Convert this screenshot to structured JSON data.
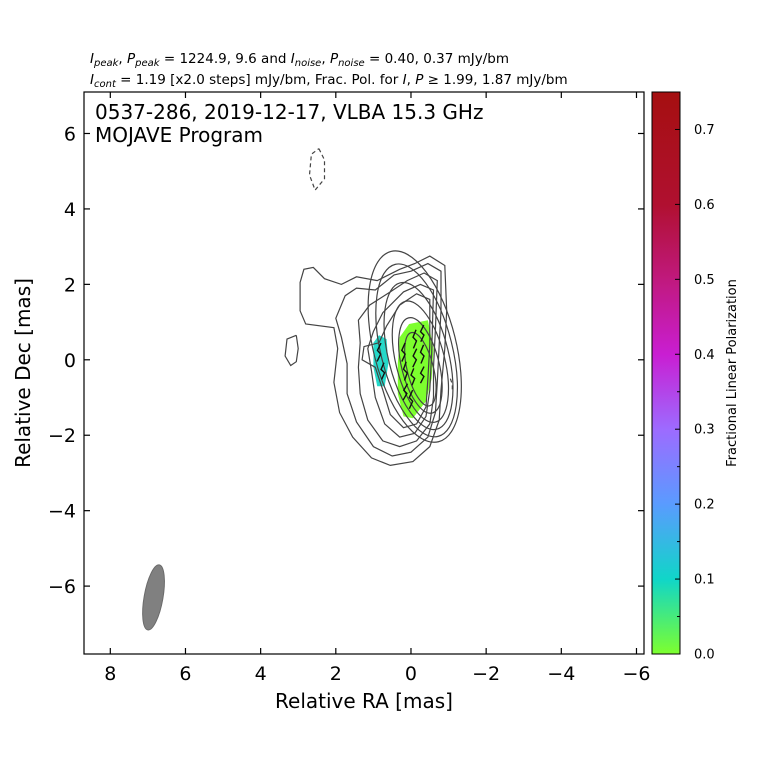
{
  "header": {
    "line1": {
      "i_peak_sym": "I",
      "i_peak_sub": "peak",
      "p_peak_sym": "P",
      "p_peak_sub": "peak",
      "peak_values": " = 1224.9, 9.6 and ",
      "i_noise_sym": "I",
      "i_noise_sub": "noise",
      "p_noise_sym": "P",
      "p_noise_sub": "noise",
      "noise_values": " = 0.40, 0.37 mJy/bm",
      "sep": ", "
    },
    "line2": {
      "i_cont_sym": "I",
      "i_cont_sub": "cont",
      "cont_values": " = 1.19 [x2.0 steps] mJy/bm, Frac. Pol. for ",
      "i_sym": "I",
      "comma": ", ",
      "p_sym": "P",
      "threshold": " ≥ 1.99, 1.87 mJy/bm"
    }
  },
  "chart_data": {
    "type": "contour",
    "title": "0537-286, 2019-12-17, VLBA 15.3 GHz",
    "subtitle": "MOJAVE Program",
    "xlabel": "Relative RA [mas]",
    "ylabel": "Relative Dec [mas]",
    "xlim": [
      8.7,
      -6.2
    ],
    "ylim": [
      -7.8,
      7.1
    ],
    "x_ticks": [
      8,
      6,
      4,
      2,
      0,
      -2,
      -4,
      -6
    ],
    "x_tick_labels": [
      "8",
      "6",
      "4",
      "2",
      "0",
      "−2",
      "−4",
      "−6"
    ],
    "y_ticks": [
      6,
      4,
      2,
      0,
      -2,
      -4,
      -6
    ],
    "y_tick_labels": [
      "6",
      "4",
      "2",
      "0",
      "−2",
      "−4",
      "−6"
    ],
    "grid": false,
    "contour_base_mJy_per_beam": 1.19,
    "contour_step_factor": 2.0,
    "contour_levels": [
      {
        "cx": -0.25,
        "cy": -0.25,
        "rx": 0.35,
        "ry": 1.0,
        "angle": -14
      },
      {
        "cx": -0.25,
        "cy": -0.15,
        "rx": 0.5,
        "ry": 1.3,
        "angle": -14
      },
      {
        "cx": -0.25,
        "cy": -0.05,
        "rx": 0.65,
        "ry": 1.65,
        "angle": -14
      },
      {
        "cx": -0.2,
        "cy": 0.1,
        "rx": 0.8,
        "ry": 2.0,
        "angle": -14
      },
      {
        "cx": -0.15,
        "cy": 0.25,
        "rx": 0.95,
        "ry": 2.35,
        "angle": -14
      },
      {
        "cx": -0.1,
        "cy": 0.35,
        "rx": 1.1,
        "ry": 2.6,
        "angle": -14
      }
    ],
    "outer_contours": [
      [
        [
          -0.9,
          2.5
        ],
        [
          -0.5,
          2.75
        ],
        [
          -0.1,
          2.55
        ],
        [
          0.3,
          2.4
        ],
        [
          0.9,
          2.1
        ],
        [
          1.45,
          2.2
        ],
        [
          1.85,
          2.0
        ],
        [
          2.3,
          2.15
        ],
        [
          2.6,
          2.45
        ],
        [
          2.85,
          2.4
        ],
        [
          2.95,
          2.05
        ],
        [
          2.95,
          1.3
        ],
        [
          2.8,
          0.95
        ],
        [
          2.05,
          0.85
        ],
        [
          1.95,
          0.3
        ],
        [
          2.05,
          -0.6
        ],
        [
          1.9,
          -1.4
        ],
        [
          1.55,
          -2.05
        ],
        [
          1.05,
          -2.6
        ],
        [
          0.55,
          -2.8
        ],
        [
          -0.05,
          -2.7
        ],
        [
          -0.5,
          -2.3
        ],
        [
          -0.75,
          -1.6
        ],
        [
          -0.8,
          -0.8
        ],
        [
          -0.9,
          0.3
        ],
        [
          -0.95,
          1.3
        ],
        [
          -0.9,
          2.5
        ]
      ],
      [
        [
          -0.8,
          2.35
        ],
        [
          -0.45,
          2.55
        ],
        [
          0.0,
          2.35
        ],
        [
          0.45,
          2.25
        ],
        [
          0.95,
          1.85
        ],
        [
          1.45,
          1.9
        ],
        [
          1.75,
          1.7
        ],
        [
          2.0,
          1.1
        ],
        [
          1.85,
          0.6
        ],
        [
          1.7,
          -0.1
        ],
        [
          1.7,
          -0.9
        ],
        [
          1.45,
          -1.65
        ],
        [
          1.0,
          -2.3
        ],
        [
          0.5,
          -2.55
        ],
        [
          0.0,
          -2.45
        ],
        [
          -0.45,
          -2.05
        ],
        [
          -0.65,
          -1.4
        ],
        [
          -0.7,
          -0.6
        ],
        [
          -0.75,
          0.4
        ],
        [
          -0.8,
          1.3
        ],
        [
          -0.8,
          2.35
        ]
      ],
      [
        [
          -0.7,
          2.1
        ],
        [
          -0.35,
          2.3
        ],
        [
          0.1,
          2.1
        ],
        [
          0.55,
          1.8
        ],
        [
          1.1,
          1.45
        ],
        [
          1.4,
          1.05
        ],
        [
          1.35,
          0.45
        ],
        [
          1.4,
          -0.2
        ],
        [
          1.35,
          -0.9
        ],
        [
          1.15,
          -1.6
        ],
        [
          0.75,
          -2.15
        ],
        [
          0.3,
          -2.3
        ],
        [
          -0.15,
          -2.15
        ],
        [
          -0.5,
          -1.7
        ],
        [
          -0.6,
          -1.0
        ],
        [
          -0.6,
          -0.2
        ],
        [
          -0.65,
          0.8
        ],
        [
          -0.7,
          2.1
        ]
      ],
      [
        [
          -0.6,
          1.85
        ],
        [
          -0.25,
          2.0
        ],
        [
          0.2,
          1.8
        ],
        [
          0.75,
          1.25
        ],
        [
          1.0,
          0.75
        ],
        [
          1.15,
          0.3
        ],
        [
          1.05,
          -0.3
        ],
        [
          0.95,
          -1.0
        ],
        [
          0.7,
          -1.7
        ],
        [
          0.3,
          -2.05
        ],
        [
          -0.1,
          -1.95
        ],
        [
          -0.4,
          -1.5
        ],
        [
          -0.5,
          -0.8
        ],
        [
          -0.55,
          0.2
        ],
        [
          -0.6,
          1.85
        ]
      ],
      [
        [
          -0.5,
          1.6
        ],
        [
          -0.15,
          1.75
        ],
        [
          0.3,
          1.45
        ],
        [
          0.65,
          0.9
        ],
        [
          0.85,
          0.45
        ],
        [
          1.25,
          0.35
        ],
        [
          1.3,
          0.0
        ],
        [
          0.95,
          -0.2
        ],
        [
          0.75,
          -0.8
        ],
        [
          0.55,
          -1.45
        ],
        [
          0.2,
          -1.8
        ],
        [
          -0.15,
          -1.7
        ],
        [
          -0.4,
          -1.25
        ],
        [
          -0.45,
          -0.5
        ],
        [
          -0.5,
          0.4
        ],
        [
          -0.5,
          1.6
        ]
      ]
    ],
    "islands": [
      {
        "label": "west-island",
        "points": [
          [
            3.05,
            0.65
          ],
          [
            3.3,
            0.55
          ],
          [
            3.35,
            0.1
          ],
          [
            3.2,
            -0.15
          ],
          [
            3.05,
            -0.05
          ],
          [
            3.0,
            0.3
          ],
          [
            3.05,
            0.65
          ]
        ]
      },
      {
        "label": "negative-contour",
        "dashed": true,
        "points": [
          [
            2.45,
            5.6
          ],
          [
            2.3,
            5.3
          ],
          [
            2.3,
            4.8
          ],
          [
            2.55,
            4.5
          ],
          [
            2.7,
            4.9
          ],
          [
            2.65,
            5.45
          ],
          [
            2.45,
            5.6
          ]
        ]
      },
      {
        "label": "east-dash",
        "dashed": true,
        "points": [
          [
            -1.05,
            -0.5
          ],
          [
            -1.1,
            -0.65
          ],
          [
            -1.1,
            -0.8
          ]
        ]
      }
    ],
    "polarization_regions": [
      {
        "label": "core-pol",
        "fraction": 0.02,
        "color": "#7dff2e",
        "points": [
          [
            0.3,
            0.6
          ],
          [
            0.05,
            0.95
          ],
          [
            -0.45,
            1.05
          ],
          [
            -0.6,
            0.3
          ],
          [
            -0.55,
            -0.5
          ],
          [
            -0.4,
            -1.1
          ],
          [
            -0.05,
            -1.55
          ],
          [
            0.2,
            -1.5
          ],
          [
            0.35,
            -0.9
          ],
          [
            0.35,
            -0.1
          ],
          [
            0.3,
            0.6
          ]
        ]
      },
      {
        "label": "upstream-pol",
        "fraction": 0.12,
        "color": "#25d9c9",
        "points": [
          [
            1.0,
            0.45
          ],
          [
            0.85,
            0.65
          ],
          [
            0.65,
            0.55
          ],
          [
            0.6,
            -0.1
          ],
          [
            0.7,
            -0.7
          ],
          [
            0.9,
            -0.7
          ],
          [
            1.0,
            -0.2
          ],
          [
            1.0,
            0.45
          ]
        ]
      }
    ],
    "evpa_ticks": [
      {
        "x": 0.85,
        "y": 0.2,
        "len": 0.5,
        "angle": 12
      },
      {
        "x": 0.75,
        "y": -0.3,
        "len": 0.45,
        "angle": 8
      },
      {
        "x": 0.2,
        "y": 0.2,
        "len": 0.5,
        "angle": 10
      },
      {
        "x": 0.15,
        "y": -0.3,
        "len": 0.5,
        "angle": 5
      },
      {
        "x": 0.15,
        "y": -0.85,
        "len": 0.45,
        "angle": 15
      },
      {
        "x": -0.1,
        "y": 0.55,
        "len": 0.5,
        "angle": 8
      },
      {
        "x": -0.1,
        "y": 0.05,
        "len": 0.5,
        "angle": 12
      },
      {
        "x": -0.05,
        "y": -0.45,
        "len": 0.45,
        "angle": 6
      },
      {
        "x": 0.0,
        "y": -1.05,
        "len": 0.5,
        "angle": 10
      },
      {
        "x": -0.3,
        "y": 0.7,
        "len": 0.45,
        "angle": 10
      },
      {
        "x": -0.3,
        "y": 0.15,
        "len": 0.5,
        "angle": 8
      },
      {
        "x": -0.3,
        "y": -0.4,
        "len": 0.45,
        "angle": 12
      }
    ],
    "beam": {
      "x": 6.85,
      "y": -6.3,
      "major_mas": 1.75,
      "minor_mas": 0.5,
      "angle_deg": 10,
      "color": "#808080"
    },
    "colorbar": {
      "label": "Fractional Linear Polarization",
      "range": [
        0.0,
        0.75
      ],
      "ticks": [
        0.0,
        0.1,
        0.2,
        0.3,
        0.4,
        0.5,
        0.6,
        0.7
      ],
      "tick_labels": [
        "0.0",
        "0.1",
        "0.2",
        "0.3",
        "0.4",
        "0.5",
        "0.6",
        "0.7"
      ],
      "minor_ticks": [
        0.05,
        0.15,
        0.25,
        0.35
      ],
      "stops": [
        {
          "v": 0.0,
          "color": "#7dff2e"
        },
        {
          "v": 0.1,
          "color": "#10d6c8"
        },
        {
          "v": 0.2,
          "color": "#5a9bff"
        },
        {
          "v": 0.3,
          "color": "#9d6bff"
        },
        {
          "v": 0.4,
          "color": "#c91ed2"
        },
        {
          "v": 0.5,
          "color": "#c0197d"
        },
        {
          "v": 0.6,
          "color": "#b01030"
        },
        {
          "v": 0.75,
          "color": "#a50f10"
        }
      ]
    }
  }
}
